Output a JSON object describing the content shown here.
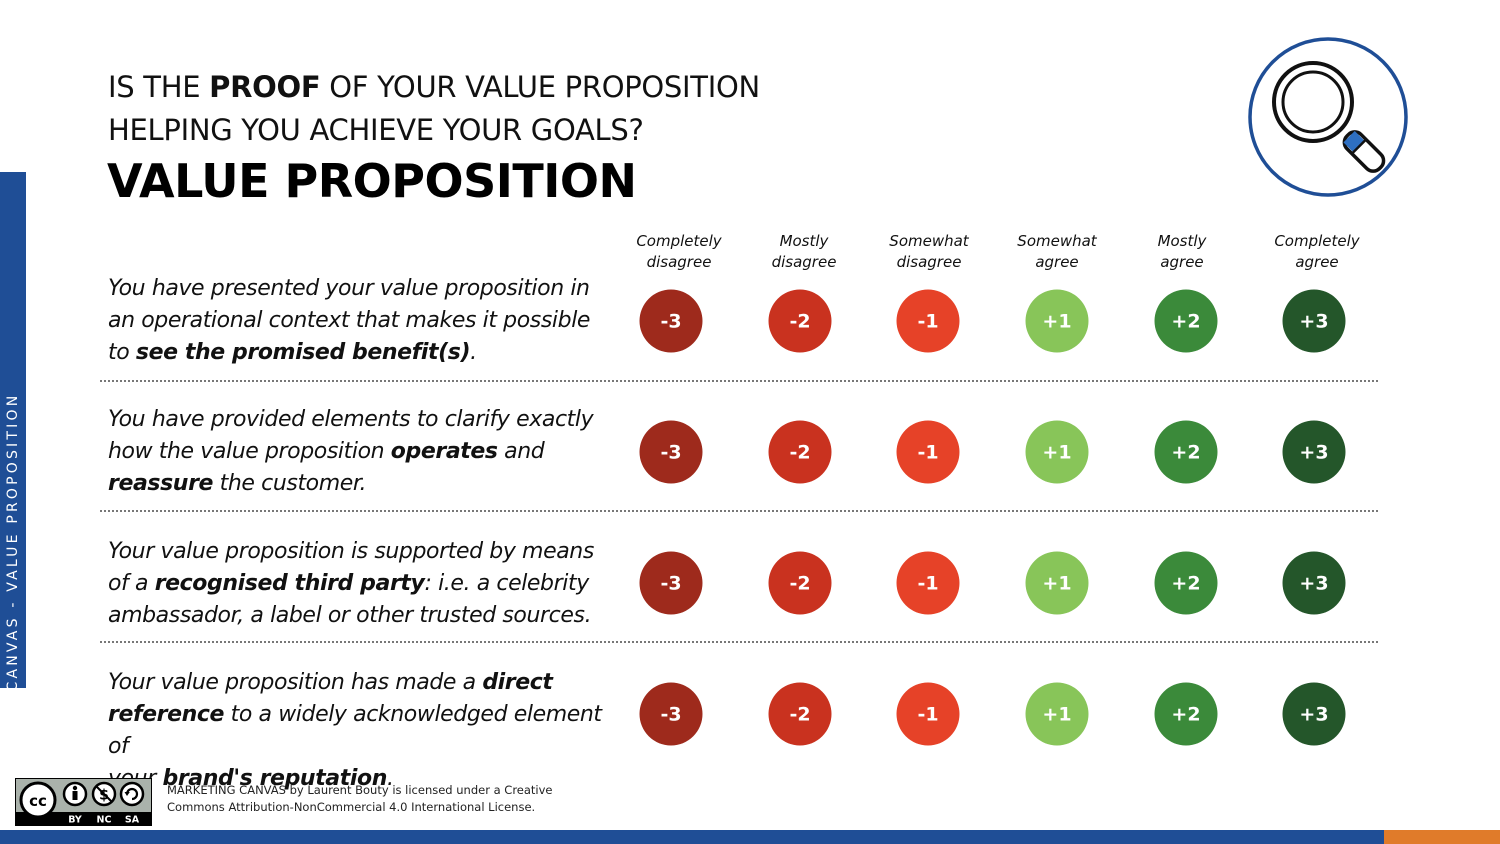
{
  "side_label": "MARKETING CANVAS - VALUE PROPOSITION",
  "question": {
    "line1_pre": "IS THE ",
    "line1_bold": "PROOF",
    "line1_post": " OF YOUR VALUE PROPOSITION",
    "line2": "HELPING YOU ACHIEVE YOUR GOALS?"
  },
  "section_title": "VALUE PROPOSITION",
  "icon": "magnifying-glass-icon",
  "scale": [
    {
      "line1": "Completely",
      "line2": "disagree",
      "value": "-3",
      "color": "#9e2a1c"
    },
    {
      "line1": "Mostly",
      "line2": "disagree",
      "value": "-2",
      "color": "#c9321f"
    },
    {
      "line1": "Somewhat",
      "line2": "disagree",
      "value": "-1",
      "color": "#e64228"
    },
    {
      "line1": "Somewhat",
      "line2": "agree",
      "value": "+1",
      "color": "#88c559"
    },
    {
      "line1": "Mostly",
      "line2": "agree",
      "value": "+2",
      "color": "#3b8a3a"
    },
    {
      "line1": "Completely",
      "line2": "agree",
      "value": "+3",
      "color": "#24562a"
    }
  ],
  "statements": [
    {
      "l1": "You have presented your value proposition in",
      "l2": "an operational context that makes it possible",
      "l3a": "to ",
      "l3b": "see the promised benefit(s)",
      "l3c": "."
    },
    {
      "l1": "You have provided elements to clarify exactly",
      "l2a": "how the value proposition ",
      "l2b": "operates",
      "l2c": " and",
      "l3a": "reassure",
      "l3b": " the customer."
    },
    {
      "l1": "Your value proposition is supported by means",
      "l2a": "of a ",
      "l2b": "recognised third party",
      "l2c": ": i.e. a celebrity",
      "l3": "ambassador, a label or other trusted sources."
    },
    {
      "l1a": "Your value proposition has made a ",
      "l1b": "direct",
      "l2a": "reference",
      "l2b": " to a widely acknowledged element of",
      "l3a": "your ",
      "l3b": "brand's reputation",
      "l3c": "."
    }
  ],
  "license": {
    "badge_cc": "cc",
    "badge_by": "BY",
    "badge_nc": "NC",
    "badge_sa": "SA",
    "line1": "MARKETING CANVAS by Laurent Bouty is licensed under a Creative",
    "line2": "Commons Attribution-NonCommercial 4.0 International License."
  },
  "colors": {
    "brand_blue": "#1f4e96",
    "accent_orange": "#e07b2a"
  }
}
